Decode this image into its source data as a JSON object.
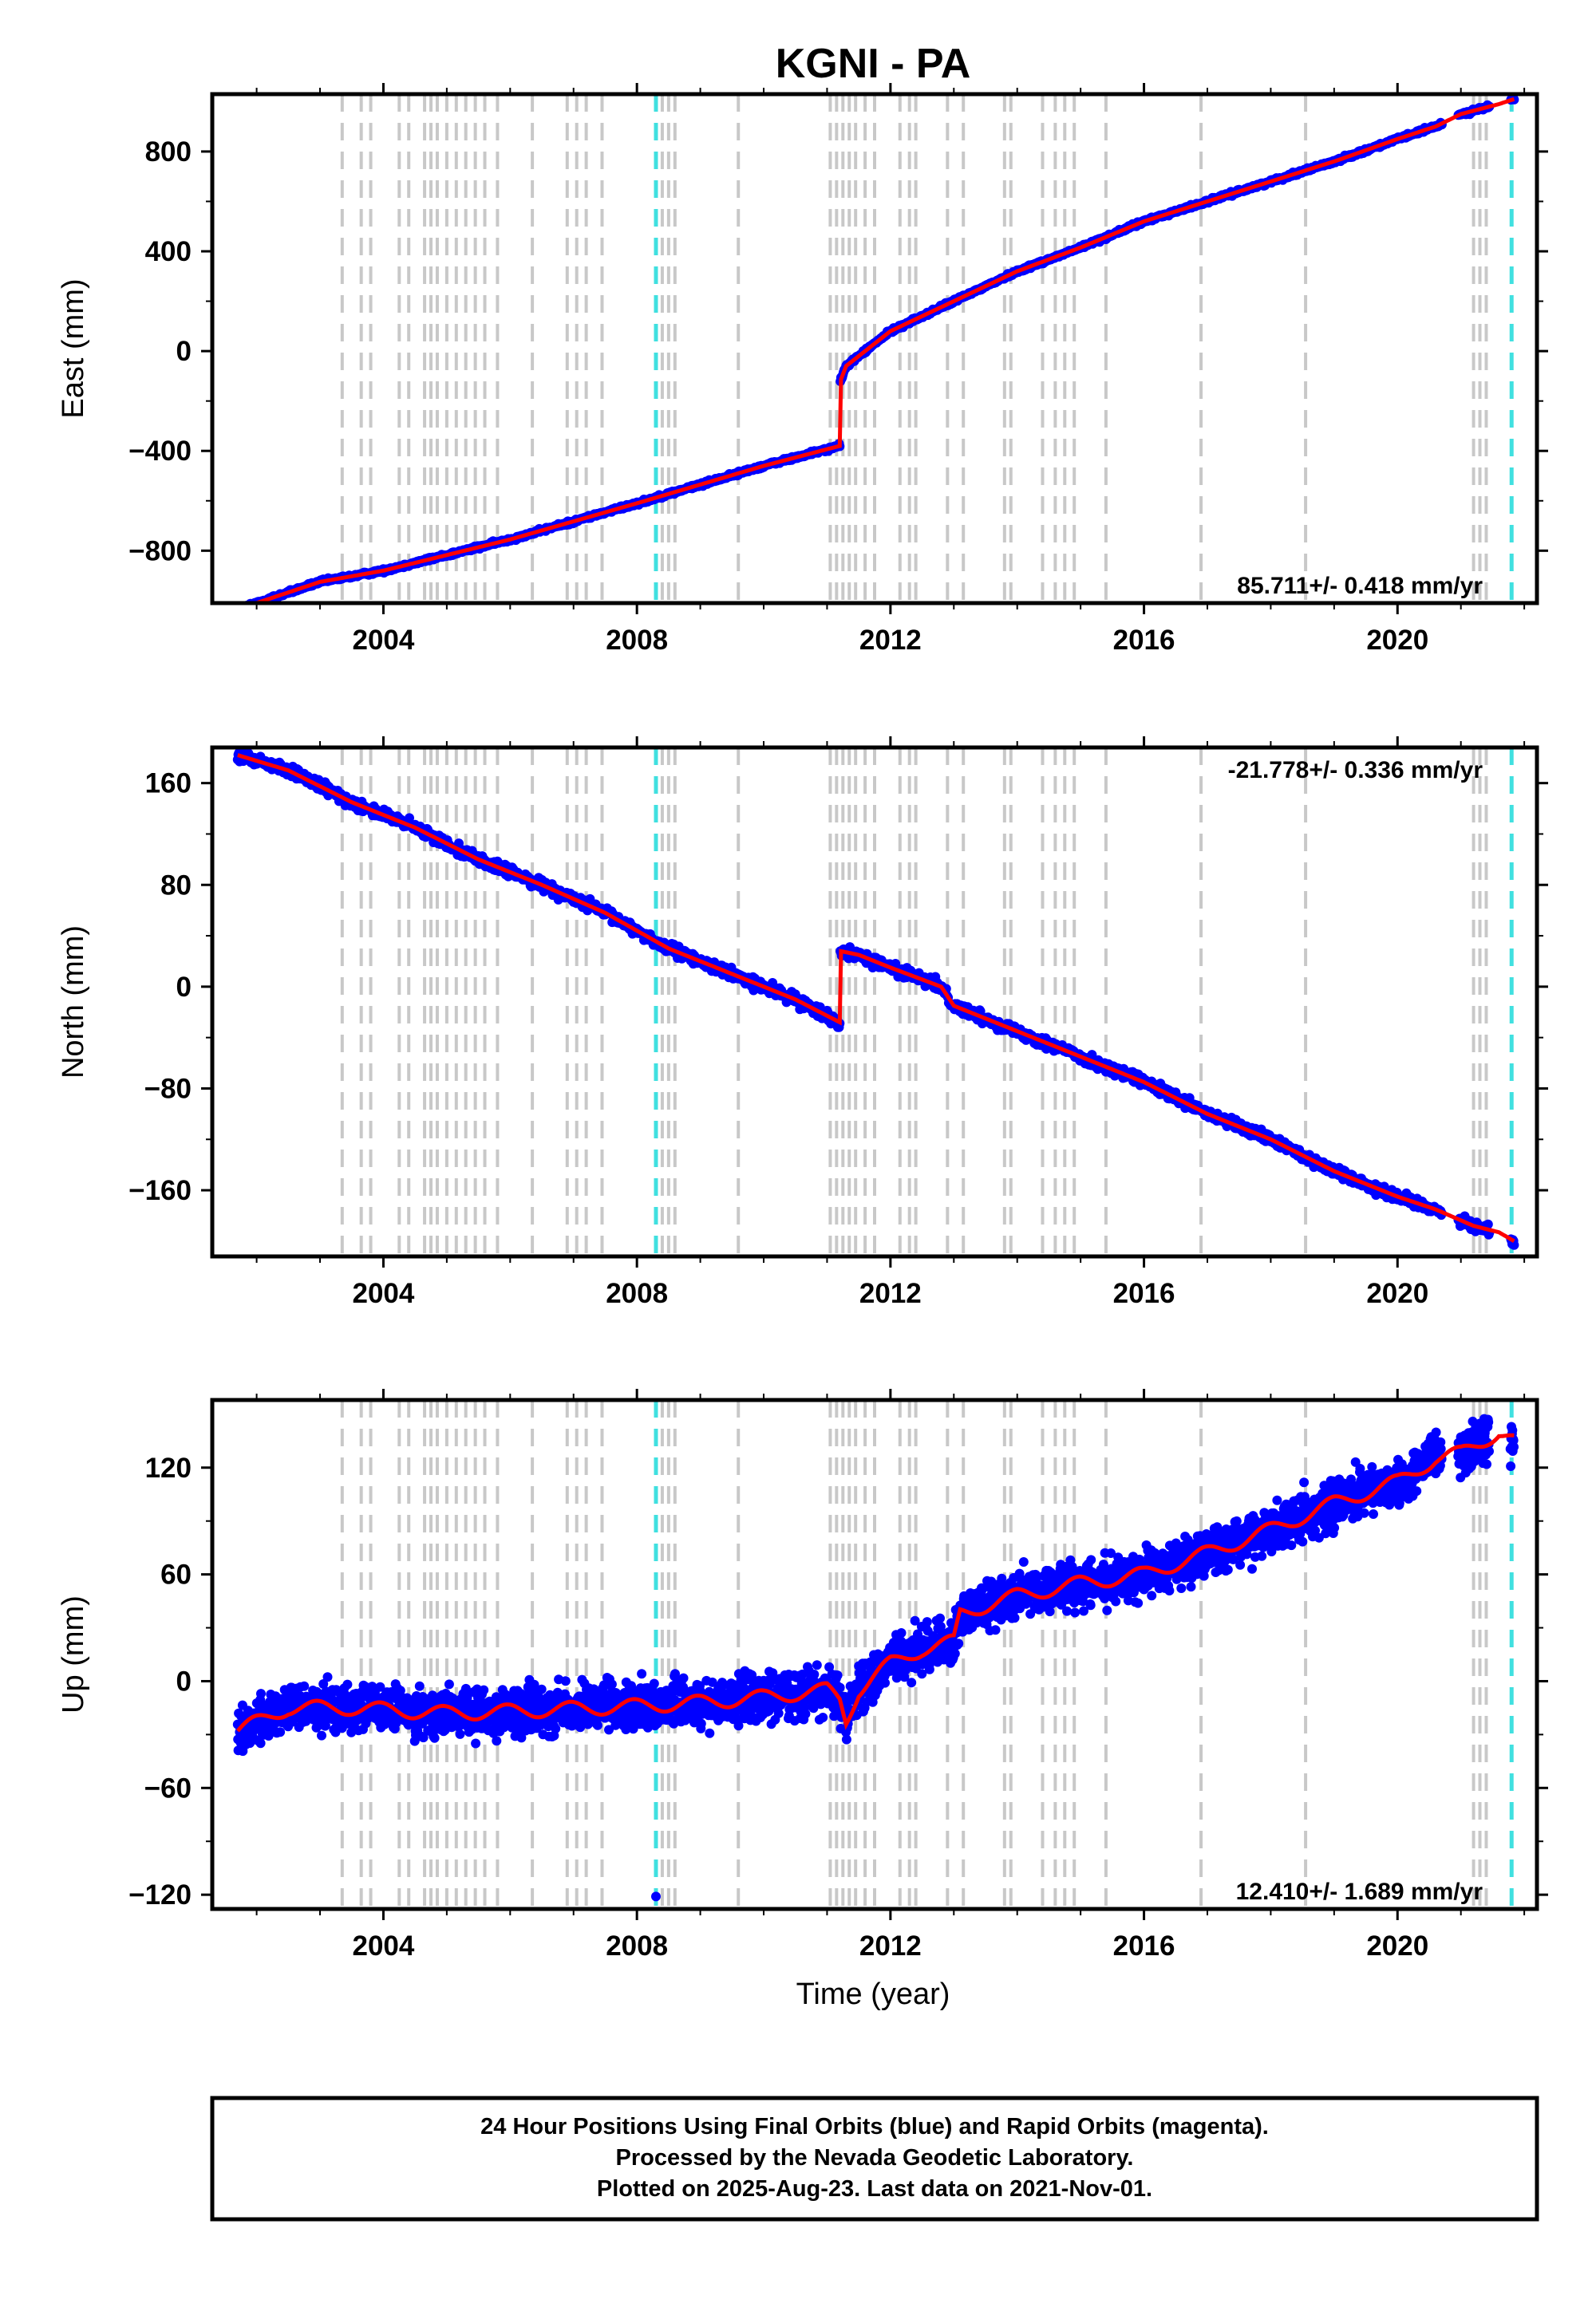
{
  "chart_data": {
    "type": "scatter",
    "title": "KGNI - PA",
    "xlabel": "Time (year)",
    "xlim": [
      2001.3,
      2022.2
    ],
    "x_ticks": [
      2004,
      2008,
      2012,
      2016,
      2020
    ],
    "x_tick_labels": [
      "2004",
      "2008",
      "2012",
      "2016",
      "2020"
    ],
    "series_colors": {
      "final_orbits": "#0000ff",
      "model": "#ff0000",
      "equipment_change": "#c8c8c8",
      "earthquake": "#40e0e0"
    },
    "gray_event_lines": [
      2003.35,
      2003.65,
      2003.8,
      2004.25,
      2004.4,
      2004.65,
      2004.75,
      2004.85,
      2005.0,
      2005.15,
      2005.3,
      2005.45,
      2005.6,
      2005.8,
      2006.35,
      2006.9,
      2007.05,
      2007.2,
      2007.45,
      2008.4,
      2008.5,
      2008.6,
      2009.6,
      2011.05,
      2011.15,
      2011.25,
      2011.35,
      2011.45,
      2011.6,
      2011.75,
      2012.15,
      2012.3,
      2012.4,
      2012.9,
      2013.15,
      2013.8,
      2013.9,
      2014.4,
      2014.6,
      2014.75,
      2014.9,
      2015.4,
      2016.9,
      2018.55,
      2021.2,
      2021.3,
      2021.4
    ],
    "cyan_event_lines": [
      2008.3,
      2021.8
    ],
    "panels": [
      {
        "id": "east",
        "ylabel": "East (mm)",
        "ylim": [
          -1010,
          1030
        ],
        "y_ticks": [
          -800,
          -400,
          0,
          400,
          800
        ],
        "y_tick_labels": [
          "−800",
          "−400",
          "0",
          "400",
          "800"
        ],
        "rate_label": "85.711+/- 0.418 mm/yr",
        "rate_position": "bottom-right",
        "trend_points": [
          [
            2001.7,
            -1035
          ],
          [
            2003.0,
            -925
          ],
          [
            2004.0,
            -880
          ],
          [
            2006.0,
            -755
          ],
          [
            2008.0,
            -610
          ],
          [
            2010.0,
            -460
          ],
          [
            2011.2,
            -380
          ],
          [
            2011.21,
            -120
          ],
          [
            2011.3,
            -60
          ],
          [
            2011.6,
            0
          ],
          [
            2012.0,
            80
          ],
          [
            2013.0,
            200
          ],
          [
            2014.0,
            320
          ],
          [
            2015.0,
            415
          ],
          [
            2016.0,
            520
          ],
          [
            2017.0,
            600
          ],
          [
            2018.0,
            680
          ],
          [
            2019.0,
            760
          ],
          [
            2020.0,
            850
          ],
          [
            2020.6,
            900
          ],
          [
            2021.0,
            950
          ],
          [
            2021.6,
            990
          ],
          [
            2021.84,
            1010
          ]
        ],
        "noise_amplitude": 5,
        "sample_step": 0.01
      },
      {
        "id": "north",
        "ylabel": "North (mm)",
        "ylim": [
          -212,
          188
        ],
        "y_ticks": [
          -160,
          -80,
          0,
          80,
          160
        ],
        "y_tick_labels": [
          "−160",
          "−80",
          "0",
          "80",
          "160"
        ],
        "rate_label": "-21.778+/- 0.336 mm/yr",
        "rate_position": "top-right",
        "trend_points": [
          [
            2001.7,
            182
          ],
          [
            2002.5,
            170
          ],
          [
            2003.5,
            145
          ],
          [
            2004.5,
            125
          ],
          [
            2005.5,
            100
          ],
          [
            2006.5,
            80
          ],
          [
            2007.5,
            58
          ],
          [
            2008.5,
            30
          ],
          [
            2009.5,
            10
          ],
          [
            2010.5,
            -10
          ],
          [
            2011.2,
            -28
          ],
          [
            2011.21,
            28
          ],
          [
            2011.5,
            25
          ],
          [
            2012.0,
            15
          ],
          [
            2012.8,
            0
          ],
          [
            2013.0,
            -15
          ],
          [
            2014.0,
            -35
          ],
          [
            2015.0,
            -55
          ],
          [
            2016.0,
            -75
          ],
          [
            2017.0,
            -100
          ],
          [
            2018.0,
            -120
          ],
          [
            2019.0,
            -145
          ],
          [
            2020.0,
            -165
          ],
          [
            2020.6,
            -175
          ],
          [
            2021.2,
            -188
          ],
          [
            2021.6,
            -193
          ],
          [
            2021.84,
            -200
          ]
        ],
        "noise_amplitude": 3,
        "sample_step": 0.01
      },
      {
        "id": "up",
        "ylabel": "Up (mm)",
        "ylim": [
          -128,
          158
        ],
        "y_ticks": [
          -120,
          -60,
          0,
          60,
          120
        ],
        "y_tick_labels": [
          "−120",
          "−60",
          "0",
          "60",
          "120"
        ],
        "rate_label": "12.410+/- 1.689 mm/yr",
        "rate_position": "bottom-right",
        "trend_points": [
          [
            2001.7,
            -28
          ],
          [
            2002.5,
            -15
          ],
          [
            2003.5,
            -15
          ],
          [
            2005.0,
            -18
          ],
          [
            2006.0,
            -17
          ],
          [
            2008.0,
            -14
          ],
          [
            2009.0,
            -12
          ],
          [
            2010.0,
            -9
          ],
          [
            2011.0,
            -5
          ],
          [
            2011.2,
            -10
          ],
          [
            2011.3,
            -22
          ],
          [
            2011.5,
            -5
          ],
          [
            2012.0,
            10
          ],
          [
            2012.5,
            18
          ],
          [
            2013.0,
            22
          ],
          [
            2013.1,
            38
          ],
          [
            2014.0,
            48
          ],
          [
            2015.0,
            55
          ],
          [
            2016.0,
            60
          ],
          [
            2017.0,
            72
          ],
          [
            2018.0,
            85
          ],
          [
            2019.0,
            100
          ],
          [
            2020.0,
            112
          ],
          [
            2020.6,
            125
          ],
          [
            2021.0,
            128
          ],
          [
            2021.6,
            140
          ],
          [
            2021.84,
            135
          ]
        ],
        "noise_amplitude": 9,
        "sample_step": 0.0055,
        "outlier": [
          2008.3,
          -121
        ]
      }
    ]
  },
  "footer": {
    "line1": "24 Hour Positions Using Final Orbits (blue) and Rapid Orbits (magenta).",
    "line2": "Processed by the Nevada Geodetic Laboratory.",
    "line3": "Plotted on 2025-Aug-23. Last data on 2021-Nov-01."
  }
}
